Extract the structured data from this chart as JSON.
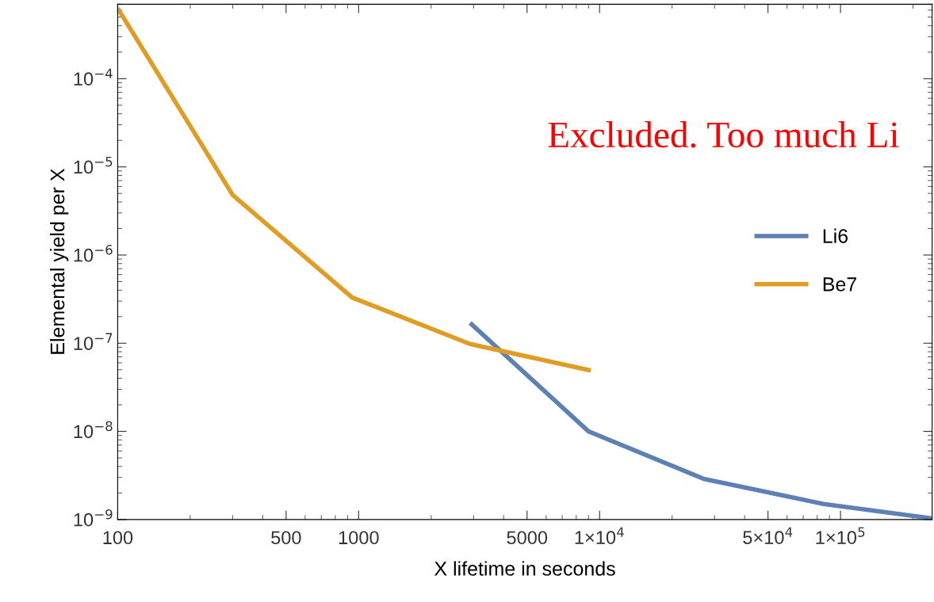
{
  "chart_data": {
    "type": "line",
    "xlabel": "X lifetime in seconds",
    "ylabel": "Elemental yield per X",
    "log": "xy",
    "grid": false,
    "legend": "right",
    "marker": "none",
    "line_style": "solid",
    "xlim": [
      100,
      240000
    ],
    "ylim": [
      1e-09,
      0.0007
    ],
    "xticks": [
      100,
      500,
      1000,
      5000,
      {
        "value": 10000,
        "label": "1×10$^{4}$"
      },
      {
        "value": 50000,
        "label": "5×10$^{4}$"
      },
      {
        "value": 100000,
        "label": "1×10$^{5}$"
      }
    ],
    "yticks": [
      {
        "value": 1e-09,
        "label": "10$^{−9}$"
      },
      {
        "value": 1e-08,
        "label": "10$^{−8}$"
      },
      {
        "value": 1e-07,
        "label": "10$^{−7}$"
      },
      {
        "value": 1e-06,
        "label": "10$^{−6}$"
      },
      {
        "value": 1e-05,
        "label": "10$^{−5}$"
      },
      {
        "value": 0.0001,
        "label": "10$^{−4}$"
      }
    ],
    "series": [
      {
        "name": "Li6",
        "color": "#5e81b5",
        "x": [
          2900,
          9000,
          27000,
          85000,
          240000
        ],
        "values": [
          1.7e-07,
          1e-08,
          2.9e-09,
          1.5e-09,
          1.03e-09
        ]
      },
      {
        "name": "Be7",
        "color": "#e19c24",
        "x": [
          100,
          300,
          940,
          2900,
          9200
        ],
        "values": [
          0.00063,
          4.8e-06,
          3.3e-07,
          9.8e-08,
          4.9e-08
        ]
      }
    ],
    "annotations": [
      "Excluded. Too much Li"
    ]
  }
}
